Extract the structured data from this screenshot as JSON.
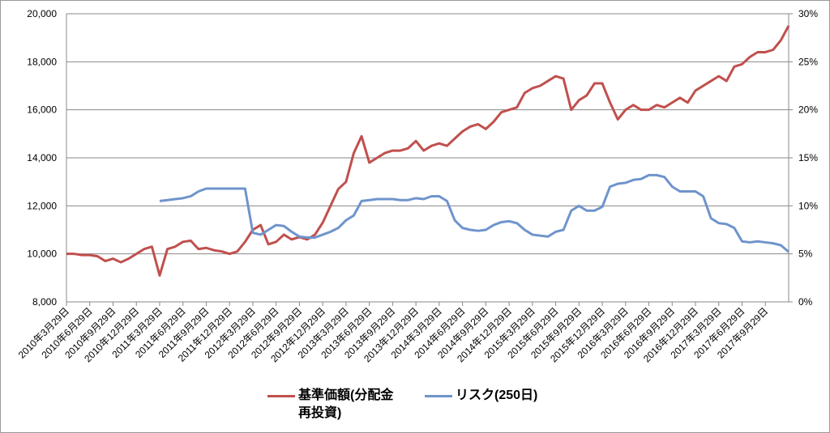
{
  "chart_data": {
    "type": "line",
    "categories": [
      "2010年3月29日",
      null,
      null,
      "2010年6月29日",
      null,
      null,
      "2010年9月29日",
      null,
      null,
      "2010年12月29日",
      null,
      null,
      "2011年3月29日",
      null,
      null,
      "2011年6月29日",
      null,
      null,
      "2011年9月29日",
      null,
      null,
      "2011年12月29日",
      null,
      null,
      "2012年3月29日",
      null,
      null,
      "2012年6月29日",
      null,
      null,
      "2012年9月29日",
      null,
      null,
      "2012年12月29日",
      null,
      null,
      "2013年3月29日",
      null,
      null,
      "2013年6月29日",
      null,
      null,
      "2013年9月29日",
      null,
      null,
      "2013年12月29日",
      null,
      null,
      "2014年3月29日",
      null,
      null,
      "2014年6月29日",
      null,
      null,
      "2014年9月29日",
      null,
      null,
      "2014年12月29日",
      null,
      null,
      "2015年3月29日",
      null,
      null,
      "2015年6月29日",
      null,
      null,
      "2015年9月29日",
      null,
      null,
      "2015年12月29日",
      null,
      null,
      "2016年3月29日",
      null,
      null,
      "2016年6月29日",
      null,
      null,
      "2016年9月29日",
      null,
      null,
      "2016年12月29日",
      null,
      null,
      "2017年3月29日",
      null,
      null,
      "2017年6月29日",
      null,
      null,
      "2017年9月29日",
      null,
      null,
      null
    ],
    "series": [
      {
        "name": "基準価額(分配金再投資)",
        "color": "#c0504d",
        "values": [
          10000,
          10000,
          9950,
          9950,
          9900,
          9700,
          9800,
          9650,
          9800,
          10000,
          10200,
          10300,
          9100,
          10200,
          10300,
          10500,
          10550,
          10200,
          10250,
          10150,
          10100,
          10000,
          10100,
          10500,
          11000,
          11200,
          10400,
          10500,
          10800,
          10600,
          10700,
          10600,
          10800,
          11300,
          12000,
          12700,
          13000,
          14200,
          14900,
          13800,
          14000,
          14200,
          14300,
          14300,
          14400,
          14700,
          14300,
          14500,
          14600,
          14500,
          14800,
          15100,
          15300,
          15400,
          15200,
          15500,
          15900,
          16000,
          16100,
          16700,
          16900,
          17000,
          17200,
          17400,
          17300,
          16000,
          16400,
          16600,
          17100,
          17100,
          16300,
          15600,
          16000,
          16200,
          16000,
          16000,
          16200,
          16100,
          16300,
          16500,
          16300,
          16800,
          17000,
          17200,
          17400,
          17200,
          17800,
          17900,
          18200,
          18400,
          18400,
          18500,
          18900,
          19500
        ]
      },
      {
        "name": "リスク(250日)",
        "color": "#6f94cc",
        "axis": "y2",
        "values": [
          null,
          null,
          null,
          null,
          null,
          null,
          null,
          null,
          null,
          null,
          null,
          null,
          10.5,
          10.6,
          10.7,
          10.8,
          11.0,
          11.5,
          11.8,
          11.8,
          11.8,
          11.8,
          11.8,
          11.8,
          7.2,
          7.0,
          7.5,
          8.0,
          7.9,
          7.3,
          6.8,
          6.7,
          6.7,
          7.0,
          7.3,
          7.7,
          8.5,
          9.0,
          10.5,
          10.6,
          10.7,
          10.7,
          10.7,
          10.6,
          10.6,
          10.8,
          10.7,
          11.0,
          11.0,
          10.5,
          8.5,
          7.7,
          7.5,
          7.4,
          7.5,
          8.0,
          8.3,
          8.4,
          8.2,
          7.5,
          7.0,
          6.9,
          6.8,
          7.3,
          7.5,
          9.5,
          10.0,
          9.5,
          9.5,
          9.9,
          12.0,
          12.3,
          12.4,
          12.7,
          12.8,
          13.2,
          13.2,
          13.0,
          12.0,
          11.5,
          11.5,
          11.5,
          11.0,
          8.7,
          8.2,
          8.1,
          7.7,
          6.3,
          6.2,
          6.3,
          6.2,
          6.1,
          5.9,
          5.2
        ]
      }
    ],
    "ylim": [
      8000,
      20000
    ],
    "yticks": [
      {
        "value": 8000,
        "label": "8,000"
      },
      {
        "value": 10000,
        "label": "10,000"
      },
      {
        "value": 12000,
        "label": "12,000"
      },
      {
        "value": 14000,
        "label": "14,000"
      },
      {
        "value": 16000,
        "label": "16,000"
      },
      {
        "value": 18000,
        "label": "18,000"
      },
      {
        "value": 20000,
        "label": "20,000"
      }
    ],
    "y2lim": [
      0,
      30
    ],
    "y2ticks": [
      {
        "value": 0,
        "label": "0%"
      },
      {
        "value": 5,
        "label": "5%"
      },
      {
        "value": 10,
        "label": "10%"
      },
      {
        "value": 15,
        "label": "15%"
      },
      {
        "value": 20,
        "label": "20%"
      },
      {
        "value": 25,
        "label": "25%"
      },
      {
        "value": 30,
        "label": "30%"
      }
    ],
    "grid": true
  }
}
